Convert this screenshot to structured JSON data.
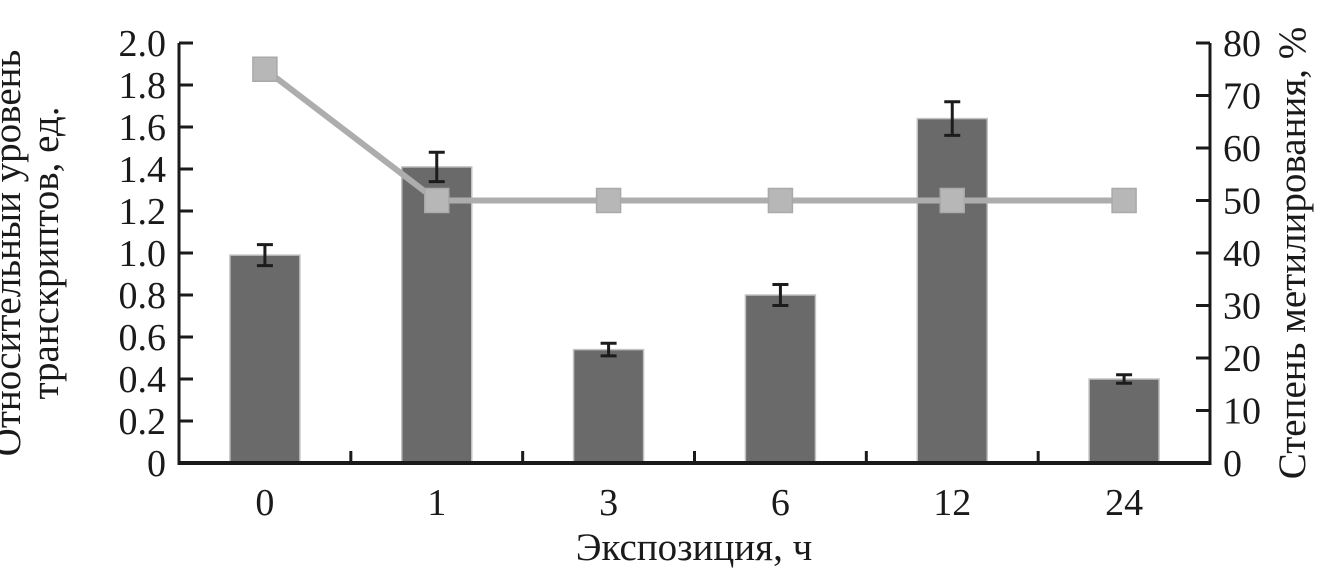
{
  "figure": {
    "background_color": "#ffffff"
  },
  "chart_data": {
    "type": "bar",
    "subtype": "bar+line dual axis",
    "title": "",
    "legend": "none",
    "grid": false,
    "categories": [
      "0",
      "1",
      "3",
      "6",
      "12",
      "24"
    ],
    "x_axis": {
      "label": "Экспозиция, ч",
      "tick_labels": [
        "0",
        "1",
        "3",
        "6",
        "12",
        "24"
      ]
    },
    "left_axis": {
      "label": "Относительный уровень транскриптов, ед.",
      "label_lines": [
        "Относительный уровень",
        "транскриптов, ед."
      ],
      "min": 0,
      "max": 2.0,
      "ticks": [
        "2.0",
        "1.8",
        "1.6",
        "1.4",
        "1.2",
        "1.0",
        "0.8",
        "0.6",
        "0.4",
        "0.2",
        "0"
      ]
    },
    "right_axis": {
      "label": "Степень метилирования, %",
      "min": 0,
      "max": 80,
      "ticks": [
        "80",
        "70",
        "60",
        "50",
        "40",
        "30",
        "20",
        "10",
        "0"
      ]
    },
    "series": [
      {
        "name": "Относительный уровень транскриптов",
        "type": "bar",
        "axis": "left",
        "values": [
          0.99,
          1.41,
          0.54,
          0.8,
          1.64,
          0.4
        ],
        "errors": [
          0.05,
          0.07,
          0.03,
          0.05,
          0.08,
          0.02
        ],
        "bar_fill": "#6a6a6a",
        "bar_stroke": "#c2c2c2",
        "error_color": "#1c1c1c"
      },
      {
        "name": "Степень метилирования",
        "type": "line",
        "axis": "right",
        "values": [
          75,
          50,
          50,
          50,
          50,
          50
        ],
        "line_color": "#adadad",
        "marker": "square",
        "marker_fill": "#b7b7b7",
        "marker_stroke": "#a9a9a9"
      }
    ],
    "axis_color": "#1a1a1a"
  }
}
